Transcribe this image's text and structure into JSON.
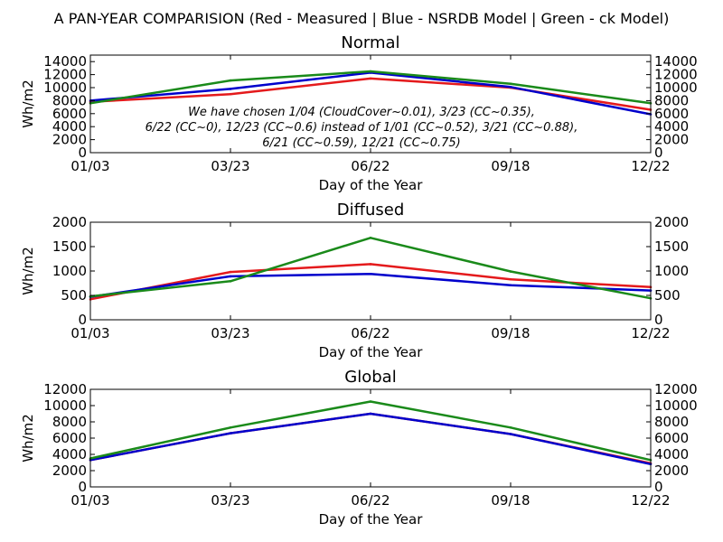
{
  "suptitle": "A PAN-YEAR COMPARISION (Red - Measured | Blue - NSRDB Model | Green - ck Model)",
  "colors": {
    "red": "#e41a1c",
    "blue": "#0000cc",
    "green": "#1a8a1a"
  },
  "chart_data": [
    {
      "type": "line",
      "title": "Normal",
      "xlabel": "Day of the Year",
      "ylabel": "Wh/m2",
      "categories": [
        "01/03",
        "03/23",
        "06/22",
        "09/18",
        "12/22"
      ],
      "ylim": [
        0,
        15000
      ],
      "yticks": [
        0,
        2000,
        4000,
        6000,
        8000,
        10000,
        12000,
        14000
      ],
      "grid": false,
      "series": [
        {
          "color": "red",
          "values": [
            7800,
            9000,
            11400,
            10000,
            6600
          ]
        },
        {
          "color": "blue",
          "values": [
            8000,
            9800,
            12300,
            10100,
            5900
          ]
        },
        {
          "color": "green",
          "values": [
            7600,
            11100,
            12500,
            10600,
            7600
          ]
        }
      ],
      "annotation": [
        "We have chosen 1/04 (CloudCover~0.01), 3/23 (CC~0.35),",
        "6/22 (CC~0), 12/23 (CC~0.6) instead of 1/01 (CC~0.52), 3/21 (CC~0.88),",
        "6/21 (CC~0.59), 12/21 (CC~0.75)"
      ]
    },
    {
      "type": "line",
      "title": "Diffused",
      "xlabel": "Day of the Year",
      "ylabel": "Wh/m2",
      "categories": [
        "01/03",
        "03/23",
        "06/22",
        "09/18",
        "12/22"
      ],
      "ylim": [
        0,
        2000
      ],
      "yticks": [
        0,
        500,
        1000,
        1500,
        2000
      ],
      "grid": false,
      "series": [
        {
          "color": "red",
          "values": [
            420,
            980,
            1140,
            830,
            670
          ]
        },
        {
          "color": "blue",
          "values": [
            470,
            890,
            940,
            710,
            600
          ]
        },
        {
          "color": "green",
          "values": [
            480,
            790,
            1680,
            990,
            440
          ]
        }
      ]
    },
    {
      "type": "line",
      "title": "Global",
      "xlabel": "Day of the Year",
      "ylabel": "Wh/m2",
      "categories": [
        "01/03",
        "03/23",
        "06/22",
        "09/18",
        "12/22"
      ],
      "ylim": [
        0,
        12000
      ],
      "yticks": [
        0,
        2000,
        4000,
        6000,
        8000,
        10000,
        12000
      ],
      "grid": false,
      "series": [
        {
          "color": "red",
          "values": [
            3300,
            6600,
            9000,
            6500,
            2900
          ]
        },
        {
          "color": "blue",
          "values": [
            3300,
            6600,
            9000,
            6500,
            2800
          ]
        },
        {
          "color": "green",
          "values": [
            3500,
            7300,
            10500,
            7300,
            3300
          ]
        }
      ]
    }
  ]
}
